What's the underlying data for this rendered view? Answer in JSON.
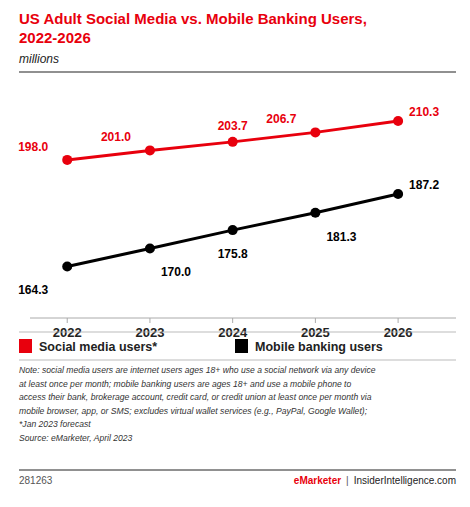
{
  "chart_data": {
    "type": "line",
    "title": "US Adult Social Media vs. Mobile Banking Users,\n2022-2026",
    "subtitle": "millions",
    "x": [
      2022,
      2023,
      2024,
      2025,
      2026
    ],
    "xlim": [
      2021.55,
      2026.7
    ],
    "xticks": [
      2022,
      2023,
      2024,
      2025,
      2026
    ],
    "ylim": [
      148,
      222
    ],
    "tick_labels": "x",
    "grid": false,
    "legend": "bottom",
    "data_labels": true,
    "series": [
      {
        "name": "Social media users*",
        "color": "#e8000d",
        "marker": "circle",
        "values": [
          198.0,
          201.0,
          203.7,
          206.7,
          210.3
        ],
        "value_labels": [
          "198.0",
          "201.0",
          "203.7",
          "206.7",
          "210.3"
        ]
      },
      {
        "name": "Mobile banking users",
        "color": "#000000",
        "marker": "circle",
        "values": [
          164.3,
          170.0,
          175.8,
          181.3,
          187.2
        ],
        "value_labels": [
          "164.3",
          "170.0",
          "175.8",
          "181.3",
          "187.2"
        ]
      }
    ],
    "note": "Note: social media users are internet users ages 18+ who use a social network via any device\nat least once per month; mobile banking users are ages 18+ and use a mobile phone to\naccess their bank, brokerage account, credit card, or credit union at least once per month via\nmobile browser, app, or SMS; excludes virtual wallet services (e.g., PayPal, Google Wallet);\n*Jan 2023 forecast\nSource: eMarketer, April 2023",
    "footer_left": "281263",
    "footer_right": [
      "eMarketer",
      "|",
      "InsiderIntelligence.com"
    ]
  }
}
